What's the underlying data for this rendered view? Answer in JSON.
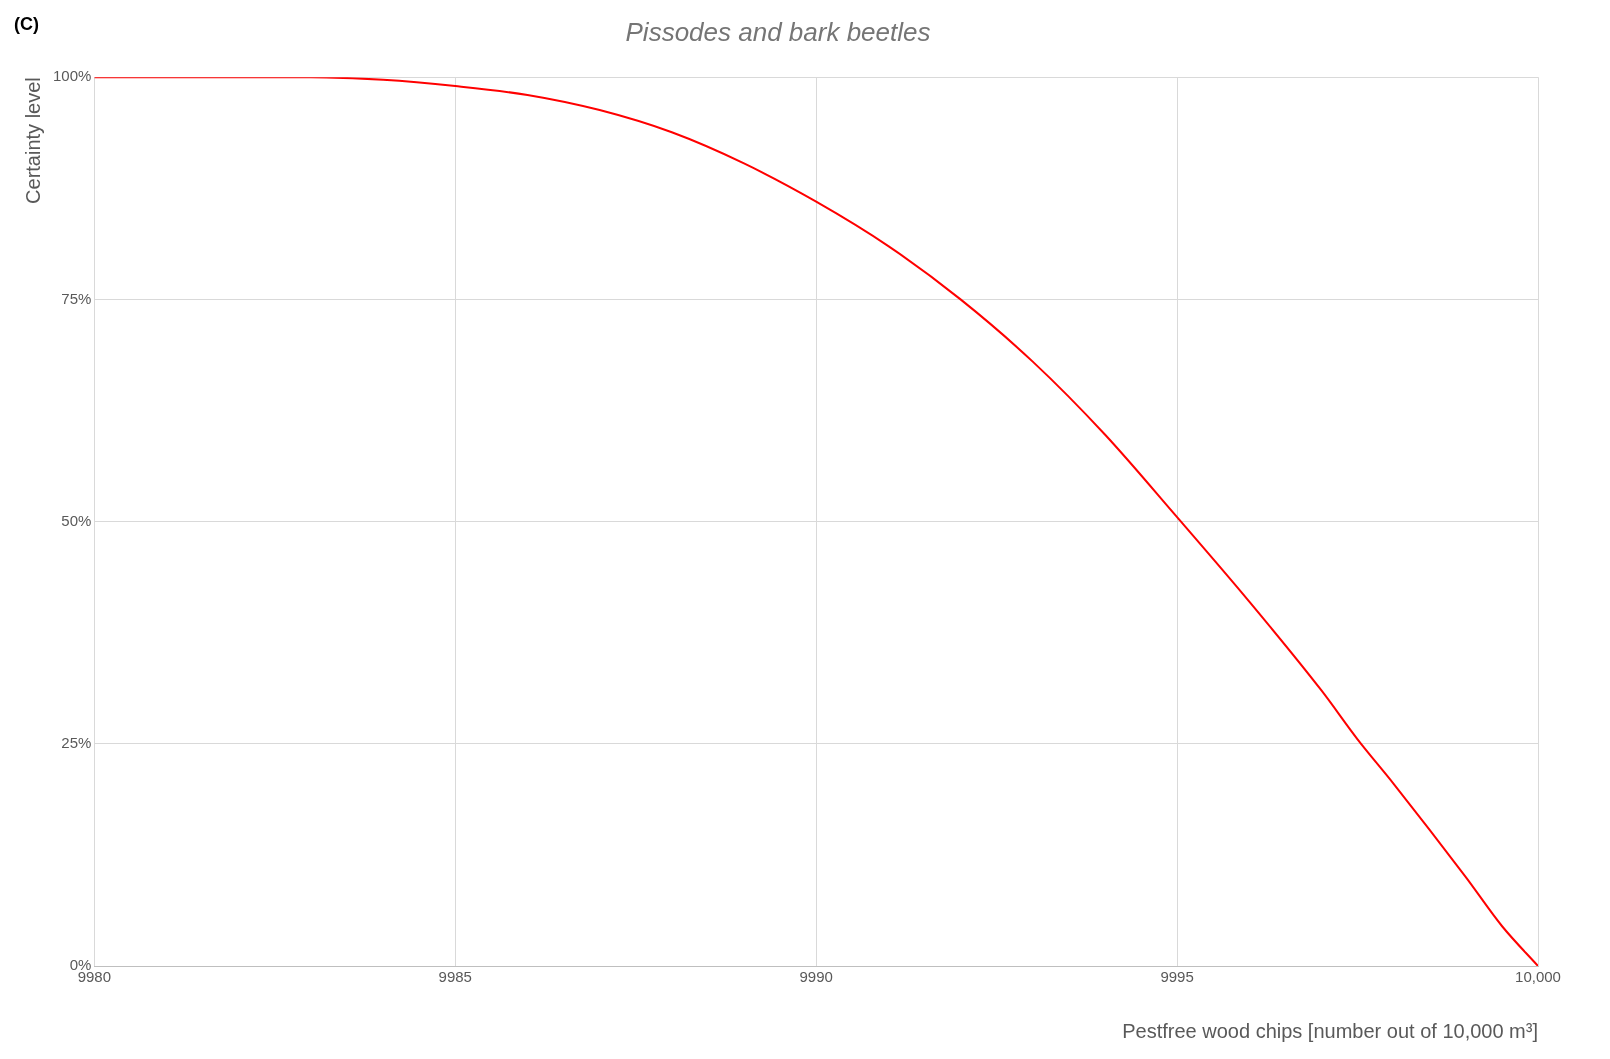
{
  "chart_data": {
    "type": "line",
    "title": "Pissodes and bark beetles",
    "xlabel": "Pestfree wood chips [number out of 10,000 m³]",
    "ylabel": "Certainty level",
    "annotations": [
      "(C)"
    ],
    "x": [
      9980,
      9981,
      9982,
      9983,
      9984,
      9985,
      9986,
      9987,
      9988,
      9989,
      9990,
      9991,
      9992,
      9993,
      9994,
      9995,
      9996,
      9997,
      9997.5,
      9998,
      9999,
      9999.5,
      10000
    ],
    "series": [
      {
        "color": "#ff0000",
        "values": [
          100,
          100,
          100,
          100,
          99.7,
          99,
          98,
          96.3,
          93.8,
          90.3,
          86,
          81,
          75,
          68,
          59.8,
          50.5,
          41,
          31,
          25.5,
          20.5,
          10,
          4.5,
          0
        ]
      }
    ],
    "xlim": [
      9980,
      10000
    ],
    "xticks": [
      9980,
      9985,
      9990,
      9995,
      {
        "value": 10000,
        "label": "10,000"
      }
    ],
    "ylim": [
      0,
      100
    ],
    "yticks": [
      {
        "value": 0,
        "label": "0%"
      },
      {
        "value": 25,
        "label": "25%"
      },
      {
        "value": 50,
        "label": "50%"
      },
      {
        "value": 75,
        "label": "75%"
      },
      {
        "value": 100,
        "label": "100%"
      }
    ],
    "grid": true,
    "legend": false,
    "marker": "none",
    "line_style": "solid"
  }
}
